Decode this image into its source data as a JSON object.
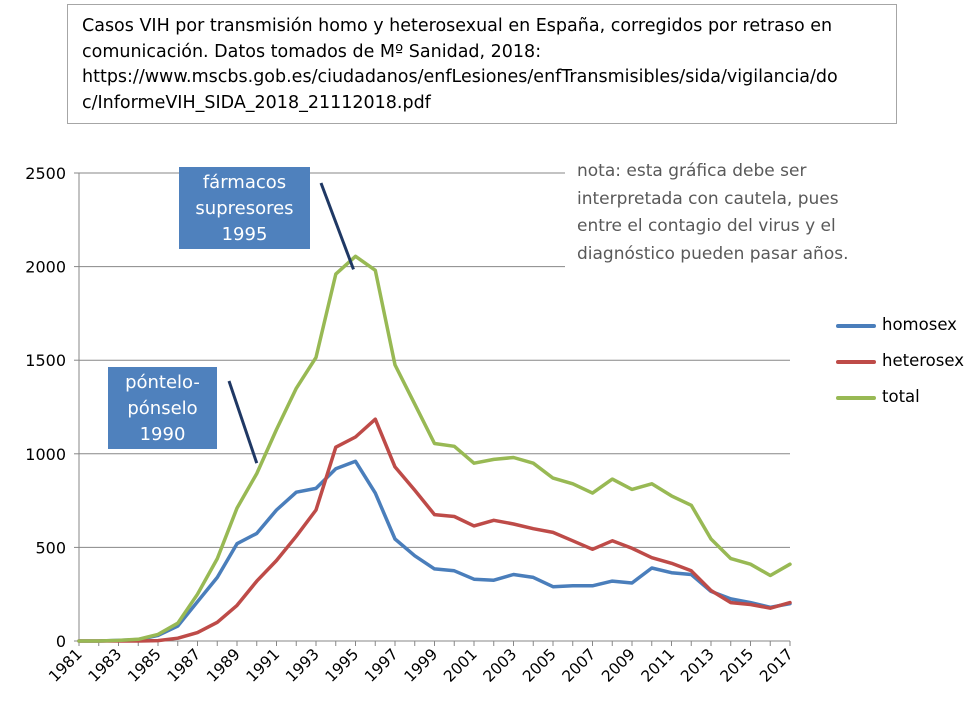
{
  "title": {
    "lines": [
      "Casos VIH por transmisión homo y heterosexual en España, corregidos por retraso en",
      "comunicación. Datos tomados de Mº Sanidad, 2018:",
      "https://www.mscbs.gob.es/ciudadanos/enfLesiones/enfTransmisibles/sida/vigilancia/do",
      "c/InformeVIH_SIDA_2018_21112018.pdf"
    ]
  },
  "note": {
    "lines": [
      "nota: esta gráfica debe ser",
      "interpretada con cautela, pues",
      "entre el contagio del virus y el",
      "diagnóstico pueden pasar años."
    ]
  },
  "callouts": {
    "farmacos": {
      "lines": [
        "fármacos",
        "supresores",
        "1995"
      ],
      "year": 1995,
      "value": 2060
    },
    "pontelo": {
      "lines": [
        "póntelo-",
        "pónselo",
        "1990"
      ],
      "year": 1990,
      "value": 950
    }
  },
  "colors": {
    "homosex": "#4a7ebb",
    "heterosex": "#be4b48",
    "total": "#98b954",
    "callout_bg": "#4f81bd",
    "arrow": "#1f3864",
    "grid": "#878787"
  },
  "legend": [
    {
      "key": "homosex",
      "label": "homosex"
    },
    {
      "key": "heterosex",
      "label": "heterosex"
    },
    {
      "key": "total",
      "label": "total"
    }
  ],
  "chart_data": {
    "type": "line",
    "title": "Casos VIH por transmisión homo y heterosexual en España, corregidos por retraso en comunicación. Datos tomados de Mº Sanidad, 2018",
    "xlabel": "",
    "ylabel": "",
    "ylim": [
      0,
      2500
    ],
    "yticks": [
      0,
      500,
      1000,
      1500,
      2000,
      2500
    ],
    "grid": true,
    "legend_position": "right",
    "x": [
      1981,
      1982,
      1983,
      1984,
      1985,
      1986,
      1987,
      1988,
      1989,
      1990,
      1991,
      1992,
      1993,
      1994,
      1995,
      1996,
      1997,
      1998,
      1999,
      2000,
      2001,
      2002,
      2003,
      2004,
      2005,
      2006,
      2007,
      2008,
      2009,
      2010,
      2011,
      2012,
      2013,
      2014,
      2015,
      2016,
      2017
    ],
    "xtick_labels": [
      "1981",
      "1983",
      "1985",
      "1987",
      "1989",
      "1991",
      "1993",
      "1995",
      "1997",
      "1999",
      "2001",
      "2003",
      "2005",
      "2007",
      "2009",
      "2011",
      "2013",
      "2015",
      "2017"
    ],
    "series": [
      {
        "name": "homosex",
        "values": [
          0,
          0,
          3,
          8,
          30,
          80,
          210,
          340,
          520,
          575,
          700,
          795,
          815,
          920,
          960,
          790,
          545,
          455,
          385,
          375,
          330,
          325,
          355,
          340,
          290,
          295,
          295,
          320,
          310,
          390,
          365,
          355,
          265,
          225,
          205,
          180,
          200
        ]
      },
      {
        "name": "heterosex",
        "values": [
          0,
          0,
          0,
          0,
          2,
          15,
          45,
          100,
          190,
          320,
          430,
          560,
          700,
          1035,
          1090,
          1185,
          930,
          805,
          675,
          665,
          615,
          645,
          625,
          600,
          580,
          535,
          490,
          535,
          495,
          445,
          415,
          375,
          270,
          205,
          195,
          175,
          205
        ]
      },
      {
        "name": "total",
        "values": [
          0,
          0,
          3,
          9,
          35,
          95,
          250,
          440,
          710,
          895,
          1130,
          1350,
          1515,
          1960,
          2055,
          1980,
          1475,
          1265,
          1055,
          1040,
          950,
          970,
          980,
          950,
          870,
          840,
          790,
          865,
          810,
          840,
          775,
          725,
          545,
          440,
          410,
          350,
          410
        ]
      }
    ]
  }
}
